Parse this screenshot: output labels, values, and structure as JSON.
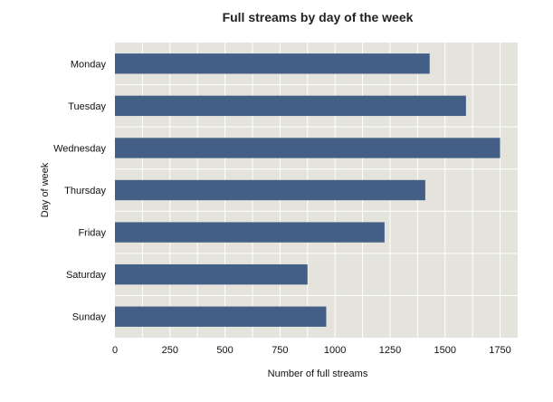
{
  "chart_data": {
    "type": "bar",
    "orientation": "horizontal",
    "title": "Full streams by day of the week",
    "xlabel": "Number of full streams",
    "ylabel": "Day of week",
    "categories": [
      "Monday",
      "Tuesday",
      "Wednesday",
      "Thursday",
      "Friday",
      "Saturday",
      "Sunday"
    ],
    "values": [
      1430,
      1595,
      1750,
      1410,
      1225,
      875,
      960
    ],
    "xlim": [
      0,
      1830
    ],
    "xticks": [
      "0",
      "250",
      "500",
      "750",
      "1000",
      "1250",
      "1500",
      "1750"
    ],
    "xtick_values": [
      0,
      250,
      500,
      750,
      1000,
      1250,
      1500,
      1750
    ],
    "grid": true,
    "legend": "none",
    "colors": {
      "bar": "#445f85",
      "plot_background": "#e4e3dc",
      "grid": "#ffffff",
      "text": "#111111",
      "title": "#222222"
    }
  }
}
